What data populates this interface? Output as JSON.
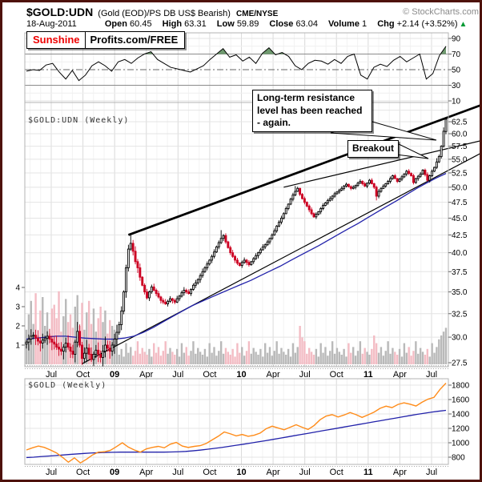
{
  "header": {
    "symbol": "$GOLD:UDN",
    "description": "(Gold (EOD)/PS DB US$ Bearish)",
    "exchange": "CME/NYSE",
    "copyright": "© StockCharts.com",
    "date": "18-Aug-2011",
    "open_label": "Open",
    "open": "60.45",
    "high_label": "High",
    "high": "63.31",
    "low_label": "Low",
    "low": "59.89",
    "close_label": "Close",
    "close": "63.04",
    "volume_label": "Volume",
    "volume": "1",
    "chg_label": "Chg",
    "chg": "+2.14 (+3.52%)",
    "chg_arrow": "▲"
  },
  "watermark": {
    "left": "Sunshine",
    "right": "Profits.com/FREE"
  },
  "annotations": {
    "resistance_note": "Long-term resistance level has been reached - again.",
    "breakout_note": "Breakout"
  },
  "colors": {
    "up": "#000000",
    "up_fill": "#ffffff",
    "down": "#cc0022",
    "vol_up": "#b9b9b9",
    "vol_down": "#f3bcc4",
    "ma": "#2222aa",
    "gold": "#ff8c1a",
    "rsi_line": "#000000",
    "rsi_fill": "#5f8f5f",
    "grid_light": "#f3f3f3",
    "grid": "#dcdcdc",
    "grid_h": "#e4e4e4",
    "band": "#8c8c8c",
    "mid": "#666666",
    "panel_border": "#b3b3b3",
    "tick": "#666666",
    "trend": "#000000",
    "chg_green": "#009933",
    "frame": "#4e120b"
  },
  "x_axis": {
    "labels": [
      {
        "t": "Jul",
        "bold": false
      },
      {
        "t": "Oct",
        "bold": false
      },
      {
        "t": "09",
        "bold": true
      },
      {
        "t": "Apr",
        "bold": false
      },
      {
        "t": "Jul",
        "bold": false
      },
      {
        "t": "Oct",
        "bold": false
      },
      {
        "t": "10",
        "bold": true
      },
      {
        "t": "Apr",
        "bold": false
      },
      {
        "t": "Jul",
        "bold": false
      },
      {
        "t": "Oct",
        "bold": false
      },
      {
        "t": "11",
        "bold": true
      },
      {
        "t": "Apr",
        "bold": false
      },
      {
        "t": "Jul",
        "bold": false
      }
    ]
  },
  "chart_data": [
    {
      "id": "rsi",
      "type": "line",
      "ylim": [
        5,
        95
      ],
      "y_ticks": [
        90,
        70,
        50,
        30,
        10
      ],
      "overbought": 70,
      "oversold": 30,
      "midline": 50,
      "values": [
        48,
        50,
        49,
        56,
        58,
        47,
        38,
        49,
        36,
        43,
        55,
        60,
        55,
        48,
        60,
        63,
        58,
        65,
        70,
        73,
        63,
        58,
        53,
        51,
        49,
        47,
        51,
        55,
        63,
        70,
        77,
        66,
        69,
        61,
        66,
        58,
        71,
        78,
        69,
        72,
        67,
        55,
        50,
        58,
        62,
        61,
        57,
        63,
        58,
        67,
        70,
        43,
        38,
        53,
        57,
        54,
        62,
        67,
        60,
        65,
        70,
        38,
        45,
        68,
        80
      ]
    },
    {
      "id": "price",
      "type": "candlestick",
      "label": "$GOLD:UDN (Weekly)",
      "log_scale": true,
      "y_tick_labels": [
        "62.5",
        "60.0",
        "57.5",
        "55.0",
        "52.5",
        "50.0",
        "47.5",
        "45.0",
        "42.5",
        "40.0",
        "37.5",
        "35.0",
        "32.5",
        "30.0",
        "27.5"
      ],
      "y_ticks": [
        62.5,
        60.0,
        57.5,
        55.0,
        52.5,
        50.0,
        47.5,
        45.0,
        42.5,
        40.0,
        37.5,
        35.0,
        32.5,
        30.0,
        27.5
      ],
      "first_open": 29.3,
      "closes": [
        29.5,
        29.8,
        30.1,
        30.2,
        29.9,
        29.6,
        29.4,
        29.7,
        29.9,
        30.1,
        29.8,
        29.5,
        29.3,
        29.0,
        28.8,
        28.6,
        29.0,
        29.4,
        29.0,
        28.6,
        28.3,
        29.5,
        30.6,
        29.2,
        27.9,
        28.4,
        28.9,
        28.3,
        27.8,
        28.3,
        28.7,
        28.3,
        28.0,
        28.6,
        29.2,
        28.9,
        28.6,
        29.2,
        29.8,
        30.5,
        31.3,
        32.8,
        35.0,
        38.0,
        40.5,
        41.3,
        40.2,
        38.8,
        38.0,
        36.8,
        35.8,
        35.0,
        34.3,
        35.0,
        35.6,
        35.2,
        34.8,
        34.4,
        34.0,
        33.8,
        33.6,
        33.9,
        34.2,
        34.0,
        33.8,
        34.2,
        34.5,
        34.9,
        35.2,
        35.0,
        34.8,
        35.3,
        35.8,
        36.1,
        36.5,
        37.0,
        37.5,
        38.0,
        38.5,
        39.0,
        39.5,
        40.1,
        40.8,
        41.4,
        42.0,
        42.4,
        41.5,
        40.7,
        40.0,
        39.5,
        39.0,
        38.6,
        38.3,
        38.7,
        39.0,
        38.7,
        38.4,
        38.8,
        39.2,
        39.6,
        40.0,
        40.4,
        40.8,
        41.1,
        41.5,
        42.0,
        42.5,
        43.1,
        43.8,
        44.4,
        45.0,
        45.7,
        46.5,
        47.2,
        48.0,
        48.7,
        49.3,
        49.8,
        48.8,
        48.1,
        47.5,
        46.9,
        46.3,
        45.7,
        45.2,
        45.6,
        46.0,
        46.5,
        47.0,
        47.4,
        47.8,
        48.1,
        48.5,
        48.9,
        49.2,
        49.5,
        49.8,
        50.2,
        50.5,
        50.1,
        49.8,
        50.0,
        50.3,
        50.7,
        51.0,
        50.6,
        50.2,
        50.7,
        51.2,
        50.6,
        50.0,
        48.5,
        49.3,
        49.8,
        50.2,
        50.6,
        51.0,
        51.5,
        52.0,
        51.5,
        51.0,
        51.4,
        51.8,
        52.3,
        52.8,
        52.4,
        52.0,
        50.8,
        51.5,
        51.9,
        52.3,
        53.0,
        52.2,
        51.2,
        52.0,
        52.8,
        53.5,
        54.5,
        55.5,
        57.5,
        60.5,
        63.04
      ],
      "wick_overrides": {
        "22": {
          "high": 31.6
        },
        "24": {
          "low": 27.3
        },
        "45": {
          "high": 42.6
        },
        "84": {
          "high": 43.2
        },
        "116": {
          "high": 50.2
        },
        "151": {
          "low": 47.8
        },
        "177": {
          "high": 55.2
        },
        "180": {
          "high": 61.3,
          "low": 57.2
        },
        "181": {
          "open": 60.45,
          "high": 63.31,
          "low": 59.89
        }
      },
      "ma50": [
        29.8,
        29.9,
        30.0,
        30.1,
        30.1,
        30.0,
        29.9,
        29.85,
        29.8,
        29.8,
        29.9,
        30.1,
        30.5,
        31.0,
        31.6,
        32.2,
        32.8,
        33.4,
        33.9,
        34.4,
        34.9,
        35.4,
        35.9,
        36.4,
        37.0,
        37.6,
        38.2,
        38.9,
        39.6,
        40.3,
        41.0,
        41.8,
        42.6,
        43.4,
        44.2,
        45.1,
        46.0,
        46.9,
        47.8,
        48.8,
        49.8,
        50.7,
        51.6,
        52.4
      ],
      "volume_ticks": [
        1,
        2,
        3,
        4
      ],
      "volume": [
        1.8,
        2.6,
        3.3,
        2.1,
        3.7,
        1.5,
        2.8,
        3.5,
        2.0,
        2.7,
        1.6,
        2.9,
        3.1,
        2.4,
        3.8,
        1.7,
        2.5,
        3.4,
        2.2,
        2.6,
        1.9,
        3.0,
        3.6,
        2.0,
        3.2,
        1.8,
        2.7,
        3.3,
        2.1,
        2.9,
        1.7,
        2.4,
        3.0,
        2.2,
        2.8,
        1.6,
        2.3,
        2.0,
        1.8,
        1.5,
        0.5,
        0.8,
        0.4,
        1.1,
        0.6,
        0.9,
        0.45,
        0.7,
        1.2,
        0.55,
        0.85,
        0.65,
        0.5,
        0.8,
        0.4,
        1.1,
        0.6,
        0.9,
        0.45,
        0.7,
        1.2,
        0.55,
        0.85,
        0.65,
        0.5,
        0.8,
        0.4,
        1.1,
        0.6,
        0.9,
        0.45,
        0.7,
        1.2,
        0.55,
        0.85,
        0.65,
        0.5,
        0.8,
        0.4,
        1.1,
        0.6,
        0.9,
        0.45,
        0.7,
        1.2,
        0.55,
        0.85,
        0.65,
        0.5,
        0.8,
        0.4,
        1.1,
        0.6,
        0.9,
        0.45,
        0.7,
        1.2,
        0.55,
        0.85,
        0.65,
        0.5,
        0.8,
        0.4,
        1.1,
        0.6,
        0.9,
        0.45,
        0.7,
        1.2,
        0.55,
        0.85,
        0.65,
        0.5,
        0.8,
        0.4,
        1.1,
        0.6,
        0.9,
        2.0,
        1.4,
        1.2,
        0.55,
        0.85,
        0.65,
        0.5,
        0.8,
        0.4,
        1.1,
        0.6,
        0.9,
        0.45,
        0.7,
        1.2,
        0.55,
        0.85,
        0.65,
        0.5,
        0.8,
        0.4,
        1.1,
        0.6,
        0.9,
        0.45,
        0.7,
        1.2,
        0.55,
        0.85,
        0.65,
        0.5,
        0.8,
        1.5,
        1.1,
        0.6,
        0.9,
        0.45,
        0.7,
        1.2,
        0.55,
        0.85,
        0.65,
        0.5,
        0.8,
        0.4,
        1.1,
        0.6,
        0.9,
        0.45,
        0.7,
        1.2,
        0.55,
        0.85,
        0.65,
        0.5,
        0.8,
        0.4,
        1.1,
        0.6,
        0.9,
        1.3,
        1.5,
        1.7,
        1.9
      ],
      "trendlines": [
        {
          "name": "long-term-resistance",
          "w1": 44,
          "p1": 42.5,
          "w2": 198,
          "p2": 66.5,
          "width": 2.8
        },
        {
          "name": "secondary-resistance",
          "w1": 111,
          "p1": 50.0,
          "w2": 198,
          "p2": 58.8,
          "width": 1.2
        },
        {
          "name": "rising-support",
          "w1": 24,
          "p1": 27.4,
          "w2": 198,
          "p2": 56.6,
          "width": 1.2
        }
      ]
    },
    {
      "id": "gold",
      "type": "line",
      "label": "$GOLD (Weekly)",
      "y_ticks": [
        1800,
        1600,
        1400,
        1200,
        1000,
        800
      ],
      "series": [
        {
          "name": "$GOLD",
          "values": [
            900,
            930,
            955,
            935,
            900,
            860,
            800,
            730,
            790,
            720,
            770,
            830,
            870,
            875,
            895,
            945,
            1000,
            940,
            900,
            870,
            915,
            935,
            950,
            930,
            980,
            1005,
            955,
            935,
            950,
            960,
            990,
            1040,
            1090,
            1150,
            1125,
            1095,
            1115,
            1090,
            1105,
            1135,
            1195,
            1230,
            1205,
            1180,
            1215,
            1250,
            1215,
            1185,
            1240,
            1320,
            1370,
            1390,
            1358,
            1385,
            1420,
            1390,
            1352,
            1388,
            1425,
            1478,
            1508,
            1488,
            1532,
            1555,
            1535,
            1510,
            1562,
            1605,
            1630,
            1740,
            1828
          ]
        },
        {
          "name": "MA",
          "values": [
            795,
            800,
            808,
            815,
            822,
            830,
            838,
            845,
            852,
            858,
            862,
            866,
            868,
            870,
            870,
            870,
            870,
            870,
            870,
            870,
            872,
            875,
            880,
            888,
            898,
            910,
            922,
            935,
            950,
            965,
            980,
            996,
            1012,
            1028,
            1045,
            1062,
            1080,
            1098,
            1115,
            1132,
            1150,
            1168,
            1185,
            1202,
            1220,
            1238,
            1255,
            1272,
            1290,
            1307,
            1325,
            1342,
            1360,
            1377,
            1394,
            1410,
            1425,
            1438,
            1450
          ]
        }
      ]
    }
  ]
}
